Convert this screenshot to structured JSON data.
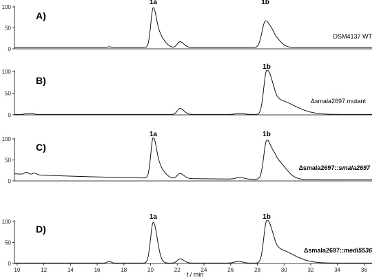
{
  "chart_data": {
    "type": "line",
    "xlabel_var": "t",
    "xlabel_unit": " / min",
    "xlim": [
      9.8,
      36.6
    ],
    "x_ticks": [
      10,
      12,
      14,
      16,
      18,
      20,
      22,
      24,
      26,
      28,
      30,
      32,
      34,
      36
    ],
    "ylim": [
      0,
      100
    ],
    "y_ticks": [
      0,
      50,
      100
    ],
    "panels": [
      {
        "letter": "A)",
        "strain_parts": [
          {
            "text": "DSM4137 WT",
            "style": "normal"
          }
        ],
        "peak_labels": [
          {
            "text": "1a",
            "x": 20.2
          },
          {
            "text": "1b",
            "x": 28.6
          }
        ],
        "baseline": 3,
        "peaks": [
          {
            "x": 20.2,
            "h": 95,
            "wl": 0.18,
            "wr": 0.28
          },
          {
            "x": 20.8,
            "h": 20,
            "wl": 0.2,
            "wr": 0.35
          },
          {
            "x": 22.2,
            "h": 14,
            "wl": 0.2,
            "wr": 0.3
          },
          {
            "x": 28.6,
            "h": 62,
            "wl": 0.25,
            "wr": 0.35
          },
          {
            "x": 29.2,
            "h": 25,
            "wl": 0.25,
            "wr": 0.5
          },
          {
            "x": 16.9,
            "h": 2,
            "wl": 0.15,
            "wr": 0.15
          }
        ]
      },
      {
        "letter": "B)",
        "strain_parts": [
          {
            "text": "Δsmala2697 mutant",
            "style": "normal"
          }
        ],
        "peak_labels": [
          {
            "text": "1b",
            "x": 28.7
          }
        ],
        "baseline": 1,
        "peaks": [
          {
            "x": 22.2,
            "h": 14,
            "wl": 0.2,
            "wr": 0.3
          },
          {
            "x": 28.7,
            "h": 98,
            "wl": 0.22,
            "wr": 0.35
          },
          {
            "x": 29.3,
            "h": 35,
            "wl": 0.3,
            "wr": 1.4
          },
          {
            "x": 26.7,
            "h": 3,
            "wl": 0.3,
            "wr": 0.3
          },
          {
            "x": 11.1,
            "h": 3,
            "wl": 0.15,
            "wr": 0.15
          },
          {
            "x": 10.7,
            "h": 2,
            "wl": 0.15,
            "wr": 0.15
          }
        ]
      },
      {
        "letter": "C)",
        "strain_parts": [
          {
            "text": "Δsmala2697::",
            "style": "bold"
          },
          {
            "text": "smala2697",
            "style": "em"
          }
        ],
        "peak_labels": [
          {
            "text": "1a",
            "x": 20.2
          },
          {
            "text": "1b",
            "x": 28.7
          }
        ],
        "baseline": 2,
        "drift": 15,
        "peaks": [
          {
            "x": 20.2,
            "h": 97,
            "wl": 0.18,
            "wr": 0.28
          },
          {
            "x": 20.8,
            "h": 18,
            "wl": 0.2,
            "wr": 0.35
          },
          {
            "x": 22.2,
            "h": 12,
            "wl": 0.2,
            "wr": 0.3
          },
          {
            "x": 28.7,
            "h": 90,
            "wl": 0.22,
            "wr": 0.35
          },
          {
            "x": 29.4,
            "h": 45,
            "wl": 0.3,
            "wr": 0.7
          },
          {
            "x": 26.7,
            "h": 4,
            "wl": 0.3,
            "wr": 0.3
          },
          {
            "x": 10.7,
            "h": 5,
            "wl": 0.15,
            "wr": 0.15
          },
          {
            "x": 11.3,
            "h": 4,
            "wl": 0.15,
            "wr": 0.15
          }
        ]
      },
      {
        "letter": "D)",
        "strain_parts": [
          {
            "text": "Δsmala2697::",
            "style": "bold"
          },
          {
            "text": "medi5536",
            "style": "em"
          }
        ],
        "peak_labels": [
          {
            "text": "1a",
            "x": 20.2
          },
          {
            "text": "1b",
            "x": 28.7
          }
        ],
        "baseline": 1,
        "peaks": [
          {
            "x": 20.2,
            "h": 97,
            "wl": 0.2,
            "wr": 0.3
          },
          {
            "x": 22.2,
            "h": 10,
            "wl": 0.2,
            "wr": 0.3
          },
          {
            "x": 28.7,
            "h": 97,
            "wl": 0.22,
            "wr": 0.35
          },
          {
            "x": 29.3,
            "h": 35,
            "wl": 0.3,
            "wr": 1.3
          },
          {
            "x": 16.9,
            "h": 4,
            "wl": 0.15,
            "wr": 0.15
          },
          {
            "x": 26.6,
            "h": 4,
            "wl": 0.3,
            "wr": 0.3
          }
        ]
      }
    ]
  }
}
